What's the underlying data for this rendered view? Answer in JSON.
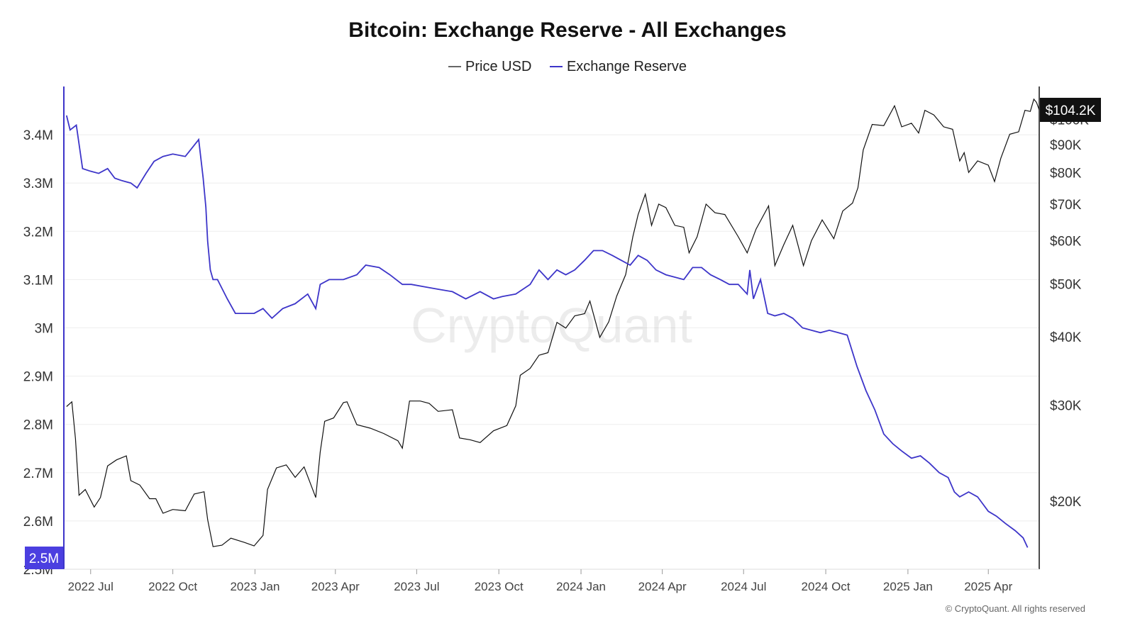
{
  "chart_data": {
    "type": "line",
    "title": "Bitcoin: Exchange Reserve - All Exchanges",
    "watermark": "CryptoQuant",
    "credit": "© CryptoQuant. All rights reserved",
    "legend": {
      "position": "top-center",
      "entries": [
        "Price USD",
        "Exchange Reserve"
      ]
    },
    "grid": true,
    "colors": {
      "price": "#111111",
      "reserve": "#3d35c9",
      "axis": "#3d35c9",
      "price_badge": "#111111",
      "reserve_badge": "#4b3fe0"
    },
    "x_axis": {
      "type": "date",
      "range": [
        "2022-06-01",
        "2025-05-28"
      ],
      "ticks": [
        "2022-07-01",
        "2022-10-01",
        "2023-01-01",
        "2023-04-01",
        "2023-07-01",
        "2023-10-01",
        "2024-01-01",
        "2024-04-01",
        "2024-07-01",
        "2024-10-01",
        "2025-01-01",
        "2025-04-01"
      ],
      "tick_labels": [
        "2022 Jul",
        "2022 Oct",
        "2023 Jan",
        "2023 Apr",
        "2023 Jul",
        "2023 Oct",
        "2024 Jan",
        "2024 Apr",
        "2024 Jul",
        "2024 Oct",
        "2025 Jan",
        "2025 Apr"
      ]
    },
    "y_left": {
      "range": [
        2500000,
        3500000
      ],
      "ticks": [
        2500000,
        2600000,
        2700000,
        2800000,
        2900000,
        3000000,
        3100000,
        3200000,
        3300000,
        3400000
      ],
      "tick_labels": [
        "2.5M",
        "2.6M",
        "2.7M",
        "2.8M",
        "2.9M",
        "3M",
        "3.1M",
        "3.2M",
        "3.3M",
        "3.4M"
      ],
      "current_label": "2.5M"
    },
    "y_right": {
      "scale": "log",
      "range": [
        15000,
        115000
      ],
      "ticks": [
        20000,
        30000,
        40000,
        50000,
        60000,
        70000,
        80000,
        90000,
        100000
      ],
      "tick_labels": [
        "$20K",
        "$30K",
        "$40K",
        "$50K",
        "$60K",
        "$70K",
        "$80K",
        "$90K",
        "$100K"
      ],
      "current_label": "$104.2K"
    },
    "series": [
      {
        "name": "Price USD",
        "axis": "right",
        "x": [
          "2022-06-04",
          "2022-06-10",
          "2022-06-14",
          "2022-06-18",
          "2022-06-25",
          "2022-07-05",
          "2022-07-12",
          "2022-07-20",
          "2022-07-30",
          "2022-08-10",
          "2022-08-15",
          "2022-08-25",
          "2022-09-05",
          "2022-09-12",
          "2022-09-20",
          "2022-10-01",
          "2022-10-15",
          "2022-10-25",
          "2022-11-05",
          "2022-11-09",
          "2022-11-15",
          "2022-11-25",
          "2022-12-05",
          "2022-12-20",
          "2022-12-31",
          "2023-01-10",
          "2023-01-15",
          "2023-01-25",
          "2023-02-05",
          "2023-02-15",
          "2023-02-25",
          "2023-03-10",
          "2023-03-15",
          "2023-03-20",
          "2023-03-30",
          "2023-04-10",
          "2023-04-14",
          "2023-04-25",
          "2023-05-10",
          "2023-05-25",
          "2023-06-10",
          "2023-06-15",
          "2023-06-23",
          "2023-07-05",
          "2023-07-15",
          "2023-07-25",
          "2023-08-10",
          "2023-08-18",
          "2023-08-30",
          "2023-09-10",
          "2023-09-25",
          "2023-10-10",
          "2023-10-20",
          "2023-10-25",
          "2023-11-05",
          "2023-11-15",
          "2023-11-25",
          "2023-12-05",
          "2023-12-15",
          "2023-12-25",
          "2024-01-05",
          "2024-01-11",
          "2024-01-22",
          "2024-02-01",
          "2024-02-10",
          "2024-02-20",
          "2024-02-28",
          "2024-03-05",
          "2024-03-13",
          "2024-03-20",
          "2024-03-28",
          "2024-04-05",
          "2024-04-15",
          "2024-04-25",
          "2024-05-01",
          "2024-05-10",
          "2024-05-20",
          "2024-05-30",
          "2024-06-10",
          "2024-06-25",
          "2024-07-05",
          "2024-07-15",
          "2024-07-29",
          "2024-08-05",
          "2024-08-15",
          "2024-08-25",
          "2024-09-06",
          "2024-09-15",
          "2024-09-27",
          "2024-10-10",
          "2024-10-20",
          "2024-10-31",
          "2024-11-06",
          "2024-11-12",
          "2024-11-22",
          "2024-12-05",
          "2024-12-17",
          "2024-12-25",
          "2025-01-05",
          "2025-01-13",
          "2025-01-20",
          "2025-01-30",
          "2025-02-10",
          "2025-02-20",
          "2025-02-28",
          "2025-03-05",
          "2025-03-10",
          "2025-03-20",
          "2025-04-01",
          "2025-04-08",
          "2025-04-15",
          "2025-04-25",
          "2025-05-05",
          "2025-05-12",
          "2025-05-18",
          "2025-05-22",
          "2025-05-25",
          "2025-05-28"
        ],
        "values": [
          29800,
          30400,
          26000,
          20500,
          21000,
          19500,
          20300,
          23200,
          23800,
          24200,
          21800,
          21400,
          20200,
          20200,
          19000,
          19300,
          19200,
          20600,
          20800,
          18500,
          16500,
          16600,
          17100,
          16800,
          16550,
          17300,
          21000,
          23000,
          23300,
          22100,
          23100,
          20300,
          24600,
          28000,
          28400,
          30300,
          30400,
          27600,
          27200,
          26600,
          25800,
          25000,
          30500,
          30500,
          30200,
          29200,
          29400,
          26100,
          25900,
          25600,
          26900,
          27500,
          29900,
          34000,
          35000,
          37000,
          37400,
          42500,
          41500,
          43700,
          44100,
          46500,
          39900,
          42600,
          47500,
          52000,
          61000,
          67000,
          73000,
          64000,
          70000,
          69000,
          64000,
          63500,
          57000,
          61000,
          70000,
          67500,
          67000,
          61000,
          57000,
          63000,
          69500,
          54000,
          59000,
          64000,
          54000,
          60000,
          65500,
          60500,
          68000,
          70300,
          75000,
          88000,
          98000,
          97500,
          106000,
          97000,
          98500,
          94500,
          104000,
          102000,
          97000,
          96000,
          84000,
          87000,
          80000,
          84000,
          82500,
          77000,
          85000,
          94000,
          95000,
          104000,
          103500,
          109000,
          107500,
          104200
        ]
      },
      {
        "name": "Exchange Reserve",
        "axis": "left",
        "x": [
          "2022-06-04",
          "2022-06-08",
          "2022-06-15",
          "2022-06-22",
          "2022-06-30",
          "2022-07-10",
          "2022-07-20",
          "2022-07-28",
          "2022-08-05",
          "2022-08-15",
          "2022-08-22",
          "2022-09-01",
          "2022-09-10",
          "2022-09-20",
          "2022-10-01",
          "2022-10-15",
          "2022-10-30",
          "2022-11-04",
          "2022-11-07",
          "2022-11-09",
          "2022-11-12",
          "2022-11-15",
          "2022-11-20",
          "2022-12-01",
          "2022-12-10",
          "2022-12-20",
          "2022-12-31",
          "2023-01-10",
          "2023-01-20",
          "2023-02-01",
          "2023-02-15",
          "2023-03-01",
          "2023-03-10",
          "2023-03-15",
          "2023-03-25",
          "2023-04-10",
          "2023-04-25",
          "2023-05-05",
          "2023-05-20",
          "2023-06-01",
          "2023-06-15",
          "2023-06-25",
          "2023-07-10",
          "2023-07-25",
          "2023-08-10",
          "2023-08-25",
          "2023-09-10",
          "2023-09-25",
          "2023-10-05",
          "2023-10-20",
          "2023-11-05",
          "2023-11-15",
          "2023-11-25",
          "2023-12-05",
          "2023-12-15",
          "2023-12-25",
          "2024-01-05",
          "2024-01-15",
          "2024-01-25",
          "2024-02-05",
          "2024-02-15",
          "2024-02-25",
          "2024-03-05",
          "2024-03-15",
          "2024-03-25",
          "2024-04-05",
          "2024-04-15",
          "2024-04-25",
          "2024-05-05",
          "2024-05-15",
          "2024-05-25",
          "2024-06-05",
          "2024-06-15",
          "2024-06-25",
          "2024-07-05",
          "2024-07-08",
          "2024-07-12",
          "2024-07-20",
          "2024-07-28",
          "2024-08-05",
          "2024-08-15",
          "2024-08-25",
          "2024-09-05",
          "2024-09-15",
          "2024-09-25",
          "2024-10-05",
          "2024-10-15",
          "2024-10-25",
          "2024-11-05",
          "2024-11-15",
          "2024-11-25",
          "2024-12-05",
          "2024-12-15",
          "2024-12-25",
          "2025-01-05",
          "2025-01-15",
          "2025-01-25",
          "2025-02-05",
          "2025-02-15",
          "2025-02-22",
          "2025-02-28",
          "2025-03-10",
          "2025-03-20",
          "2025-04-01",
          "2025-04-10",
          "2025-04-20",
          "2025-05-01",
          "2025-05-10",
          "2025-05-15"
        ],
        "values": [
          3440000,
          3410000,
          3420000,
          3330000,
          3325000,
          3320000,
          3330000,
          3310000,
          3305000,
          3300000,
          3290000,
          3320000,
          3345000,
          3355000,
          3360000,
          3355000,
          3390000,
          3310000,
          3250000,
          3180000,
          3120000,
          3100000,
          3100000,
          3060000,
          3030000,
          3030000,
          3030000,
          3040000,
          3020000,
          3040000,
          3050000,
          3070000,
          3040000,
          3090000,
          3100000,
          3100000,
          3110000,
          3130000,
          3125000,
          3110000,
          3090000,
          3090000,
          3085000,
          3080000,
          3075000,
          3060000,
          3075000,
          3060000,
          3065000,
          3070000,
          3090000,
          3120000,
          3100000,
          3120000,
          3110000,
          3120000,
          3140000,
          3160000,
          3160000,
          3150000,
          3140000,
          3130000,
          3150000,
          3140000,
          3120000,
          3110000,
          3105000,
          3100000,
          3125000,
          3125000,
          3110000,
          3100000,
          3090000,
          3090000,
          3070000,
          3120000,
          3060000,
          3100000,
          3030000,
          3025000,
          3030000,
          3020000,
          3000000,
          2995000,
          2990000,
          2995000,
          2990000,
          2985000,
          2920000,
          2870000,
          2830000,
          2780000,
          2760000,
          2745000,
          2730000,
          2735000,
          2720000,
          2700000,
          2690000,
          2660000,
          2650000,
          2660000,
          2650000,
          2620000,
          2610000,
          2595000,
          2580000,
          2565000,
          2545000
        ]
      }
    ]
  }
}
